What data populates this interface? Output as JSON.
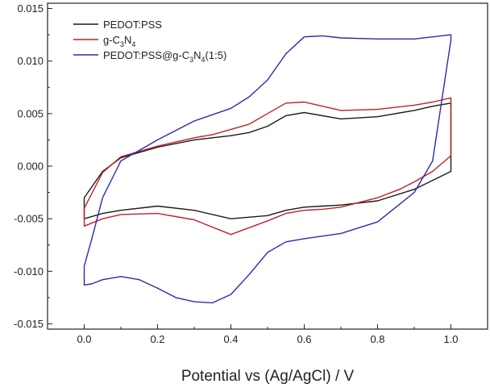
{
  "chart_data": {
    "type": "line",
    "xlabel": "Potential vs (Ag/AgCl) / V",
    "ylabel": "",
    "xlim": [
      -0.1,
      1.1
    ],
    "ylim": [
      -0.0155,
      0.0155
    ],
    "xticks": [
      0.0,
      0.2,
      0.4,
      0.6,
      0.8,
      1.0
    ],
    "xtick_labels": [
      "0.0",
      "0.2",
      "0.4",
      "0.6",
      "0.8",
      "1.0"
    ],
    "yticks": [
      -0.015,
      -0.01,
      -0.005,
      0.0,
      0.005,
      0.01,
      0.015
    ],
    "ytick_labels": [
      "-0.015",
      "-0.010",
      "-0.005",
      "0.000",
      "0.005",
      "0.010",
      "0.015"
    ],
    "grid": false,
    "legend_position": "top-left",
    "series": [
      {
        "name": "PEDOT:PSS",
        "legend_main": "PEDOT:PSS",
        "legend_parts": [],
        "color": "#1a1a1a",
        "x": [
          0.0,
          0.05,
          0.1,
          0.2,
          0.3,
          0.4,
          0.5,
          0.55,
          0.6,
          0.65,
          0.7,
          0.8,
          0.9,
          1.0,
          1.0,
          0.95,
          0.9,
          0.8,
          0.7,
          0.6,
          0.55,
          0.5,
          0.45,
          0.4,
          0.35,
          0.3,
          0.2,
          0.1,
          0.05,
          0.0,
          0.0
        ],
        "y": [
          -0.005,
          -0.0045,
          -0.0042,
          -0.0038,
          -0.0042,
          -0.005,
          -0.0047,
          -0.0042,
          -0.0039,
          -0.0038,
          -0.0037,
          -0.0033,
          -0.0022,
          -0.0005,
          0.006,
          0.0057,
          0.0053,
          0.0047,
          0.0045,
          0.0051,
          0.0048,
          0.0038,
          0.0032,
          0.0029,
          0.0027,
          0.0025,
          0.0018,
          0.0008,
          -0.0005,
          -0.003,
          -0.005
        ]
      },
      {
        "name": "g-C3N4",
        "legend_main": "g-C",
        "legend_parts": [
          {
            "t": "3",
            "sub": true
          },
          {
            "t": "N",
            "sub": false
          },
          {
            "t": "4",
            "sub": true
          }
        ],
        "color": "#c0202a",
        "x": [
          0.0,
          0.05,
          0.1,
          0.2,
          0.3,
          0.4,
          0.5,
          0.55,
          0.6,
          0.65,
          0.7,
          0.8,
          0.86,
          0.9,
          0.95,
          1.0,
          1.0,
          0.95,
          0.9,
          0.8,
          0.7,
          0.6,
          0.55,
          0.5,
          0.45,
          0.4,
          0.35,
          0.3,
          0.2,
          0.1,
          0.05,
          0.0,
          0.0
        ],
        "y": [
          -0.0057,
          -0.005,
          -0.0046,
          -0.0045,
          -0.0051,
          -0.0065,
          -0.0052,
          -0.0045,
          -0.0042,
          -0.0041,
          -0.0039,
          -0.003,
          -0.0022,
          -0.0015,
          -0.0005,
          0.001,
          0.0065,
          0.0061,
          0.0058,
          0.0054,
          0.0053,
          0.0061,
          0.006,
          0.005,
          0.004,
          0.0035,
          0.003,
          0.0027,
          0.0019,
          0.0009,
          -0.0006,
          -0.004,
          -0.0057
        ]
      },
      {
        "name": "PEDOT:PSS@g-C3N4(1:5)",
        "legend_main": "PEDOT:PSS@g-C",
        "legend_parts": [
          {
            "t": "3",
            "sub": true
          },
          {
            "t": "N",
            "sub": false
          },
          {
            "t": "4",
            "sub": true
          },
          {
            "t": "(1:5)",
            "sub": false
          }
        ],
        "color": "#2a2ab0",
        "x": [
          0.0,
          0.02,
          0.05,
          0.1,
          0.15,
          0.2,
          0.25,
          0.3,
          0.35,
          0.4,
          0.45,
          0.5,
          0.55,
          0.6,
          0.7,
          0.8,
          0.9,
          0.95,
          1.0,
          1.0,
          0.95,
          0.9,
          0.8,
          0.7,
          0.65,
          0.6,
          0.55,
          0.5,
          0.45,
          0.4,
          0.3,
          0.2,
          0.1,
          0.05,
          0.02,
          0.0,
          0.0
        ],
        "y": [
          -0.0113,
          -0.0112,
          -0.0108,
          -0.0105,
          -0.0108,
          -0.0116,
          -0.0125,
          -0.0129,
          -0.013,
          -0.0122,
          -0.0103,
          -0.0082,
          -0.0072,
          -0.0069,
          -0.0064,
          -0.0053,
          -0.0025,
          0.0005,
          0.012,
          0.0125,
          0.0123,
          0.0121,
          0.0121,
          0.0122,
          0.0124,
          0.0123,
          0.0107,
          0.0082,
          0.0066,
          0.0055,
          0.0043,
          0.0025,
          0.0005,
          -0.003,
          -0.007,
          -0.0095,
          -0.0113
        ]
      }
    ]
  }
}
